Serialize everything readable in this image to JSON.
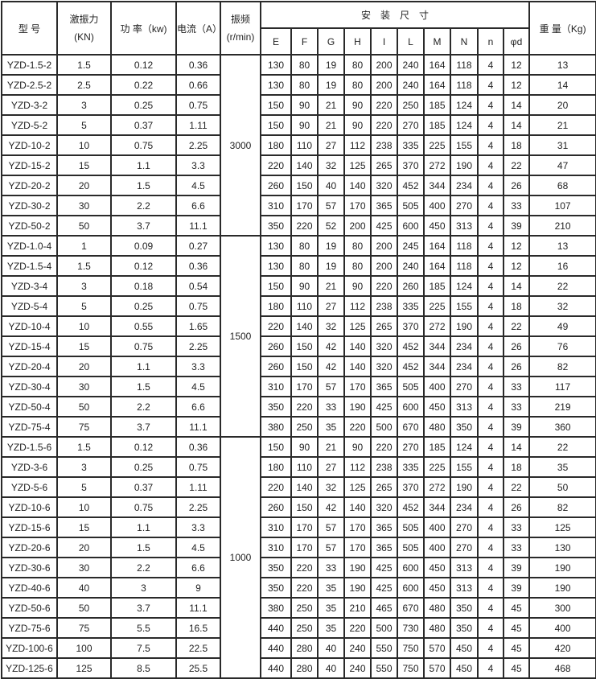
{
  "header": {
    "model": "型 号",
    "force": "激振力",
    "force_unit": "(KN)",
    "power": "功 率（kw)",
    "current": "电流（A）",
    "freq": "振频",
    "freq_unit": "(r/min)",
    "dimensions": "安　装　尺　寸",
    "dim_cols": [
      "E",
      "F",
      "G",
      "H",
      "I",
      "L",
      "M",
      "N",
      "n",
      "φd"
    ],
    "weight": "重 量（Kg)"
  },
  "groups": [
    {
      "freq": "3000",
      "rows": [
        [
          "YZD-1.5-2",
          "1.5",
          "0.12",
          "0.36",
          "130",
          "80",
          "19",
          "80",
          "200",
          "240",
          "164",
          "118",
          "4",
          "12",
          "13"
        ],
        [
          "YZD-2.5-2",
          "2.5",
          "0.22",
          "0.66",
          "130",
          "80",
          "19",
          "80",
          "200",
          "240",
          "164",
          "118",
          "4",
          "12",
          "14"
        ],
        [
          "YZD-3-2",
          "3",
          "0.25",
          "0.75",
          "150",
          "90",
          "21",
          "90",
          "220",
          "250",
          "185",
          "124",
          "4",
          "14",
          "20"
        ],
        [
          "YZD-5-2",
          "5",
          "0.37",
          "1.11",
          "150",
          "90",
          "21",
          "90",
          "220",
          "270",
          "185",
          "124",
          "4",
          "14",
          "21"
        ],
        [
          "YZD-10-2",
          "10",
          "0.75",
          "2.25",
          "180",
          "110",
          "27",
          "112",
          "238",
          "335",
          "225",
          "155",
          "4",
          "18",
          "31"
        ],
        [
          "YZD-15-2",
          "15",
          "1.1",
          "3.3",
          "220",
          "140",
          "32",
          "125",
          "265",
          "370",
          "272",
          "190",
          "4",
          "22",
          "47"
        ],
        [
          "YZD-20-2",
          "20",
          "1.5",
          "4.5",
          "260",
          "150",
          "40",
          "140",
          "320",
          "452",
          "344",
          "234",
          "4",
          "26",
          "68"
        ],
        [
          "YZD-30-2",
          "30",
          "2.2",
          "6.6",
          "310",
          "170",
          "57",
          "170",
          "365",
          "505",
          "400",
          "270",
          "4",
          "33",
          "107"
        ],
        [
          "YZD-50-2",
          "50",
          "3.7",
          "11.1",
          "350",
          "220",
          "52",
          "200",
          "425",
          "600",
          "450",
          "313",
          "4",
          "39",
          "210"
        ]
      ]
    },
    {
      "freq": "1500",
      "rows": [
        [
          "YZD-1.0-4",
          "1",
          "0.09",
          "0.27",
          "130",
          "80",
          "19",
          "80",
          "200",
          "245",
          "164",
          "118",
          "4",
          "12",
          "13"
        ],
        [
          "YZD-1.5-4",
          "1.5",
          "0.12",
          "0.36",
          "130",
          "80",
          "19",
          "80",
          "200",
          "240",
          "164",
          "118",
          "4",
          "12",
          "16"
        ],
        [
          "YZD-3-4",
          "3",
          "0.18",
          "0.54",
          "150",
          "90",
          "21",
          "90",
          "220",
          "260",
          "185",
          "124",
          "4",
          "14",
          "22"
        ],
        [
          "YZD-5-4",
          "5",
          "0.25",
          "0.75",
          "180",
          "110",
          "27",
          "112",
          "238",
          "335",
          "225",
          "155",
          "4",
          "18",
          "32"
        ],
        [
          "YZD-10-4",
          "10",
          "0.55",
          "1.65",
          "220",
          "140",
          "32",
          "125",
          "265",
          "370",
          "272",
          "190",
          "4",
          "22",
          "49"
        ],
        [
          "YZD-15-4",
          "15",
          "0.75",
          "2.25",
          "260",
          "150",
          "42",
          "140",
          "320",
          "452",
          "344",
          "234",
          "4",
          "26",
          "76"
        ],
        [
          "YZD-20-4",
          "20",
          "1.1",
          "3.3",
          "260",
          "150",
          "42",
          "140",
          "320",
          "452",
          "344",
          "234",
          "4",
          "26",
          "82"
        ],
        [
          "YZD-30-4",
          "30",
          "1.5",
          "4.5",
          "310",
          "170",
          "57",
          "170",
          "365",
          "505",
          "400",
          "270",
          "4",
          "33",
          "117"
        ],
        [
          "YZD-50-4",
          "50",
          "2.2",
          "6.6",
          "350",
          "220",
          "33",
          "190",
          "425",
          "600",
          "450",
          "313",
          "4",
          "33",
          "219"
        ],
        [
          "YZD-75-4",
          "75",
          "3.7",
          "11.1",
          "380",
          "250",
          "35",
          "220",
          "500",
          "670",
          "480",
          "350",
          "4",
          "39",
          "360"
        ]
      ]
    },
    {
      "freq": "1000",
      "rows": [
        [
          "YZD-1.5-6",
          "1.5",
          "0.12",
          "0.36",
          "150",
          "90",
          "21",
          "90",
          "220",
          "270",
          "185",
          "124",
          "4",
          "14",
          "22"
        ],
        [
          "YZD-3-6",
          "3",
          "0.25",
          "0.75",
          "180",
          "110",
          "27",
          "112",
          "238",
          "335",
          "225",
          "155",
          "4",
          "18",
          "35"
        ],
        [
          "YZD-5-6",
          "5",
          "0.37",
          "1.11",
          "220",
          "140",
          "32",
          "125",
          "265",
          "370",
          "272",
          "190",
          "4",
          "22",
          "50"
        ],
        [
          "YZD-10-6",
          "10",
          "0.75",
          "2.25",
          "260",
          "150",
          "42",
          "140",
          "320",
          "452",
          "344",
          "234",
          "4",
          "26",
          "82"
        ],
        [
          "YZD-15-6",
          "15",
          "1.1",
          "3.3",
          "310",
          "170",
          "57",
          "170",
          "365",
          "505",
          "400",
          "270",
          "4",
          "33",
          "125"
        ],
        [
          "YZD-20-6",
          "20",
          "1.5",
          "4.5",
          "310",
          "170",
          "57",
          "170",
          "365",
          "505",
          "400",
          "270",
          "4",
          "33",
          "130"
        ],
        [
          "YZD-30-6",
          "30",
          "2.2",
          "6.6",
          "350",
          "220",
          "33",
          "190",
          "425",
          "600",
          "450",
          "313",
          "4",
          "39",
          "190"
        ],
        [
          "YZD-40-6",
          "40",
          "3",
          "9",
          "350",
          "220",
          "35",
          "190",
          "425",
          "600",
          "450",
          "313",
          "4",
          "39",
          "190"
        ],
        [
          "YZD-50-6",
          "50",
          "3.7",
          "11.1",
          "380",
          "250",
          "35",
          "210",
          "465",
          "670",
          "480",
          "350",
          "4",
          "45",
          "300"
        ],
        [
          "YZD-75-6",
          "75",
          "5.5",
          "16.5",
          "440",
          "250",
          "35",
          "220",
          "500",
          "730",
          "480",
          "350",
          "4",
          "45",
          "400"
        ],
        [
          "YZD-100-6",
          "100",
          "7.5",
          "22.5",
          "440",
          "280",
          "40",
          "240",
          "550",
          "750",
          "570",
          "450",
          "4",
          "45",
          "420"
        ],
        [
          "YZD-125-6",
          "125",
          "8.5",
          "25.5",
          "440",
          "280",
          "40",
          "240",
          "550",
          "750",
          "570",
          "450",
          "4",
          "45",
          "468"
        ]
      ]
    }
  ]
}
